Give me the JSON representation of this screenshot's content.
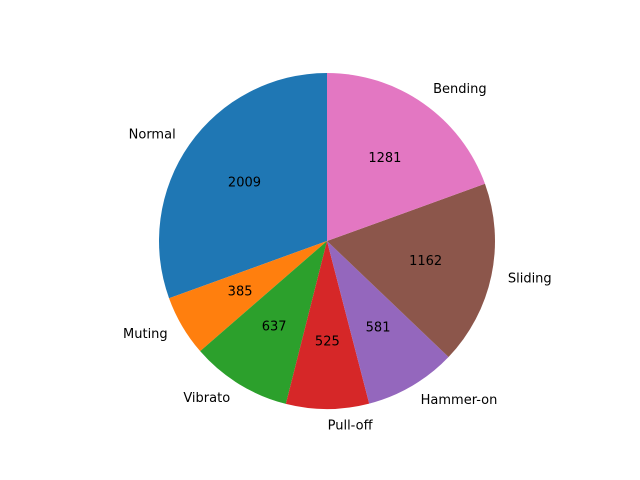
{
  "chart_data": {
    "type": "pie",
    "title": "",
    "categories": [
      "Normal",
      "Muting",
      "Vibrato",
      "Pull-off",
      "Hammer-on",
      "Sliding",
      "Bending"
    ],
    "values": [
      2009,
      385,
      637,
      525,
      581,
      1162,
      1281
    ],
    "value_labels": [
      "2009",
      "385",
      "637",
      "525",
      "581",
      "1162",
      "1281"
    ],
    "colors": [
      "#1f77b4",
      "#ff7f0e",
      "#2ca02c",
      "#d62728",
      "#9467bd",
      "#8c564b",
      "#e377c2"
    ],
    "start_angle_deg": 90,
    "direction": "counterclockwise",
    "legend": "none"
  }
}
